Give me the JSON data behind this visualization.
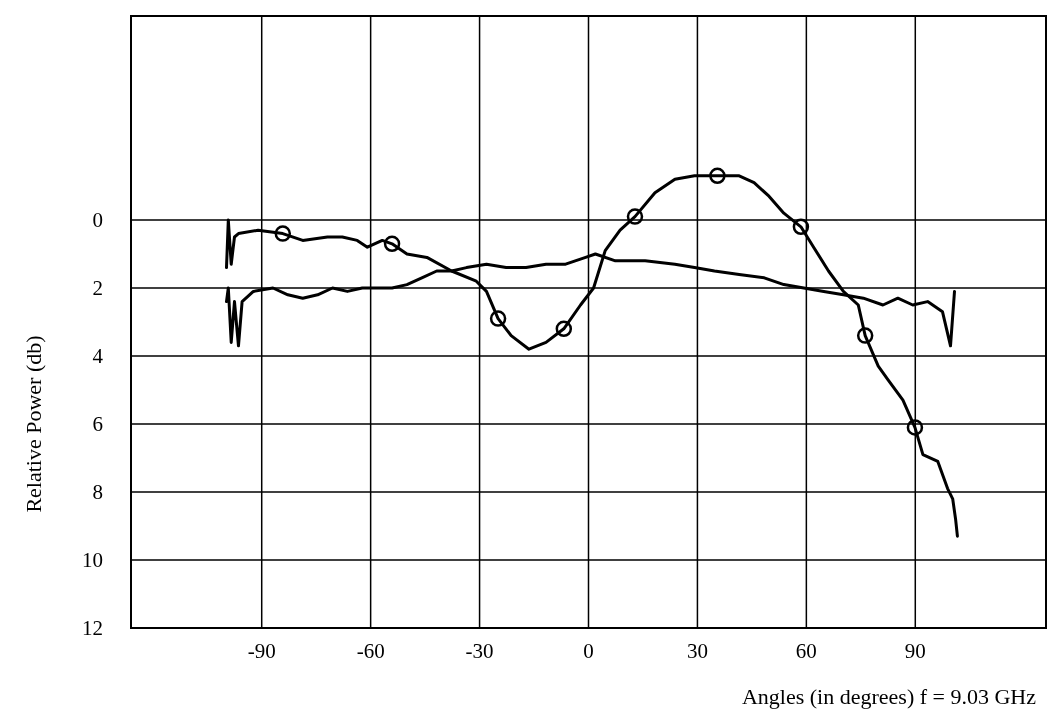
{
  "chart_data": {
    "type": "line",
    "xlabel": "Angles (in degrees)  f = 9.03 GHz",
    "ylabel": "Relative Power (db)",
    "xlim": [
      -126,
      126
    ],
    "xticks": [
      -90,
      -60,
      -30,
      0,
      30,
      60,
      90
    ],
    "ylim": [
      12,
      -6
    ],
    "yticks": [
      0,
      2,
      4,
      6,
      8,
      10,
      12
    ],
    "grid": true,
    "marker": "none",
    "line_style": "solid",
    "series": [
      {
        "color": "#000000",
        "x": [
          -99.7,
          -99.2,
          -98.4,
          -97.5,
          -96.4,
          -91,
          -84.2,
          -78.7,
          -71.9,
          -67.8,
          -63.7,
          -60.9,
          -56.8,
          -54.1,
          -50,
          -44.5,
          -37.7,
          -30.9,
          -28.1,
          -24.9,
          -21.3,
          -16.4,
          -11.7,
          -6.8,
          -2.2,
          1.4,
          4.6,
          8.7,
          12.8,
          18.3,
          23.8,
          29.2,
          35.5,
          41.5,
          45.6,
          49.7,
          53.8,
          58.5,
          62,
          66.1,
          70.2,
          74.3,
          76.2,
          79.8,
          82.5,
          86.6,
          89.9,
          92.1,
          96.2,
          98.9,
          100.3,
          101.1,
          101.6
        ],
        "values": [
          1.4,
          0,
          1.3,
          0.5,
          0.4,
          0.3,
          0.4,
          0.6,
          0.5,
          0.5,
          0.6,
          0.8,
          0.6,
          0.7,
          1,
          1.1,
          1.5,
          1.8,
          2.1,
          2.9,
          3.4,
          3.8,
          3.6,
          3.2,
          2.5,
          2,
          0.9,
          0.3,
          -0.1,
          -0.8,
          -1.2,
          -1.3,
          -1.3,
          -1.3,
          -1.1,
          -0.7,
          -0.2,
          0.2,
          0.8,
          1.5,
          2.1,
          2.5,
          3.4,
          4.3,
          4.7,
          5.3,
          6.1,
          6.9,
          7.1,
          7.9,
          8.2,
          8.8,
          9.3
        ]
      },
      {
        "color": "#000000",
        "x": [
          -99.7,
          -99.2,
          -98.4,
          -97.5,
          -96.4,
          -95.4,
          -92.3,
          -86.9,
          -82.8,
          -78.7,
          -74.6,
          -70.5,
          -66.4,
          -62.3,
          -58.2,
          -54.1,
          -50,
          -45.9,
          -41.8,
          -37.7,
          -33.6,
          -28.1,
          -22.7,
          -17.2,
          -11.7,
          -6.3,
          -0.8,
          1.9,
          7.4,
          15.6,
          23.8,
          29.2,
          34.7,
          41.5,
          48.4,
          53.8,
          59.3,
          64.8,
          70.2,
          75.7,
          81.1,
          85.2,
          89.3,
          93.4,
          97.5,
          99.7,
          100.8
        ],
        "values": [
          2.4,
          2,
          3.6,
          2.4,
          3.7,
          2.4,
          2.1,
          2,
          2.2,
          2.3,
          2.2,
          2,
          2.1,
          2,
          2,
          2,
          1.9,
          1.7,
          1.5,
          1.5,
          1.4,
          1.3,
          1.4,
          1.4,
          1.3,
          1.3,
          1.1,
          1,
          1.2,
          1.2,
          1.3,
          1.4,
          1.5,
          1.6,
          1.7,
          1.9,
          2,
          2.1,
          2.2,
          2.3,
          2.5,
          2.3,
          2.5,
          2.4,
          2.7,
          3.7,
          2.1
        ]
      },
      {
        "type": "scatter",
        "marker": "circle",
        "color": "#000000",
        "x": [
          -84.2,
          -54.1,
          -24.9,
          -6.8,
          12.8,
          35.5,
          58.5,
          76.2,
          89.9
        ],
        "values": [
          0.4,
          0.7,
          2.9,
          3.2,
          -0.1,
          -1.3,
          0.2,
          3.4,
          6.1
        ]
      }
    ]
  }
}
